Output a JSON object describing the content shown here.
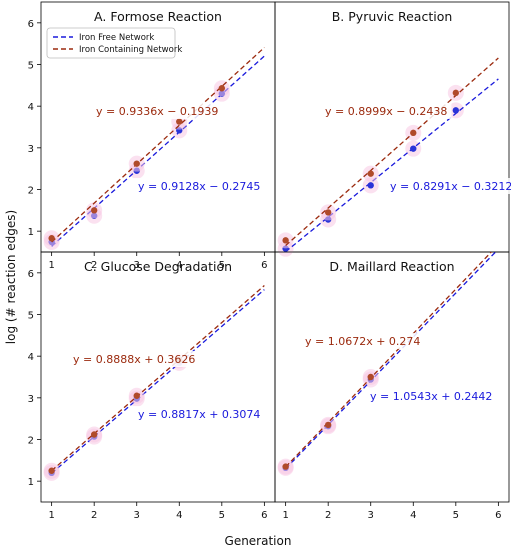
{
  "figure": {
    "ylabel": "log (# reaction edges)",
    "xlabel": "Generation"
  },
  "legend": {
    "entries": [
      {
        "label": "Iron Free Network",
        "color": "#1a1adc"
      },
      {
        "label": "Iron Containing Network",
        "color": "#9b2a0e"
      }
    ]
  },
  "colors": {
    "iron_free": "#1a1adc",
    "iron_containing": "#9b2a0e",
    "iron_free_point": "#2a34d8",
    "iron_containing_point": "#b04a2a"
  },
  "chart_data": [
    {
      "type": "scatter",
      "title": "A. Formose Reaction",
      "xlim": [
        0.75,
        6.25
      ],
      "ylim": [
        0.5,
        6.5
      ],
      "xticks": [
        "1",
        "2",
        "3",
        "4",
        "5",
        "6"
      ],
      "yticks": [
        "1",
        "2",
        "3",
        "4",
        "5",
        "6"
      ],
      "series": [
        {
          "name": "Iron Free Network",
          "x": [
            1,
            2,
            3,
            4,
            5
          ],
          "y": [
            0.74,
            1.37,
            2.45,
            3.42,
            4.3
          ],
          "fit": {
            "slope": 0.9128,
            "intercept": -0.2745,
            "label": "y = 0.9128x − 0.2745"
          }
        },
        {
          "name": "Iron Containing Network",
          "x": [
            1,
            2,
            3,
            4,
            5
          ],
          "y": [
            0.83,
            1.5,
            2.62,
            3.63,
            4.43
          ],
          "fit": {
            "slope": 0.9336,
            "intercept": -0.1939,
            "label": "y = 0.9336x − 0.1939"
          }
        }
      ]
    },
    {
      "type": "scatter",
      "title": "B. Pyruvic Reaction",
      "xlim": [
        0.75,
        6.25
      ],
      "ylim": [
        0.5,
        6.5
      ],
      "xticks": [],
      "yticks": [],
      "series": [
        {
          "name": "Iron Free Network",
          "x": [
            1,
            2,
            3,
            4,
            5
          ],
          "y": [
            0.58,
            1.28,
            2.1,
            2.98,
            3.9
          ],
          "fit": {
            "slope": 0.8291,
            "intercept": -0.3212,
            "label": "y = 0.8291x − 0.3212"
          }
        },
        {
          "name": "Iron Containing Network",
          "x": [
            1,
            2,
            3,
            4,
            5
          ],
          "y": [
            0.78,
            1.45,
            2.38,
            3.36,
            4.32
          ],
          "fit": {
            "slope": 0.8999,
            "intercept": -0.2438,
            "label": "y = 0.8999x − 0.2438"
          }
        }
      ]
    },
    {
      "type": "scatter",
      "title": "C. Glucose Degradation",
      "xlim": [
        0.75,
        6.25
      ],
      "ylim": [
        0.5,
        6.5
      ],
      "xticks": [
        "1",
        "2",
        "3",
        "4",
        "5",
        "6"
      ],
      "yticks": [
        "1",
        "2",
        "3",
        "4",
        "5",
        "6"
      ],
      "series": [
        {
          "name": "Iron Free Network",
          "x": [
            1,
            2,
            3,
            4
          ],
          "y": [
            1.2,
            2.07,
            2.98,
            3.84
          ],
          "fit": {
            "slope": 0.8817,
            "intercept": 0.3074,
            "label": "y = 0.8817x + 0.3074"
          }
        },
        {
          "name": "Iron Containing Network",
          "x": [
            1,
            2,
            3,
            4
          ],
          "y": [
            1.25,
            2.12,
            3.05,
            3.9
          ],
          "fit": {
            "slope": 0.8888,
            "intercept": 0.3626,
            "label": "y = 0.8888x + 0.3626"
          }
        }
      ]
    },
    {
      "type": "scatter",
      "title": "D. Maillard Reaction",
      "xlim": [
        0.75,
        6.25
      ],
      "ylim": [
        0.5,
        6.5
      ],
      "xticks": [
        "1",
        "2",
        "3",
        "4",
        "5",
        "6"
      ],
      "yticks": [],
      "series": [
        {
          "name": "Iron Free Network",
          "x": [
            1,
            2,
            3
          ],
          "y": [
            1.32,
            2.32,
            3.44
          ],
          "fit": {
            "slope": 1.0543,
            "intercept": 0.2442,
            "label": "y = 1.0543x + 0.2442"
          }
        },
        {
          "name": "Iron Containing Network",
          "x": [
            1,
            2,
            3
          ],
          "y": [
            1.35,
            2.35,
            3.5
          ],
          "fit": {
            "slope": 1.0672,
            "intercept": 0.274,
            "label": "y = 1.0672x + 0.274"
          }
        }
      ]
    }
  ]
}
